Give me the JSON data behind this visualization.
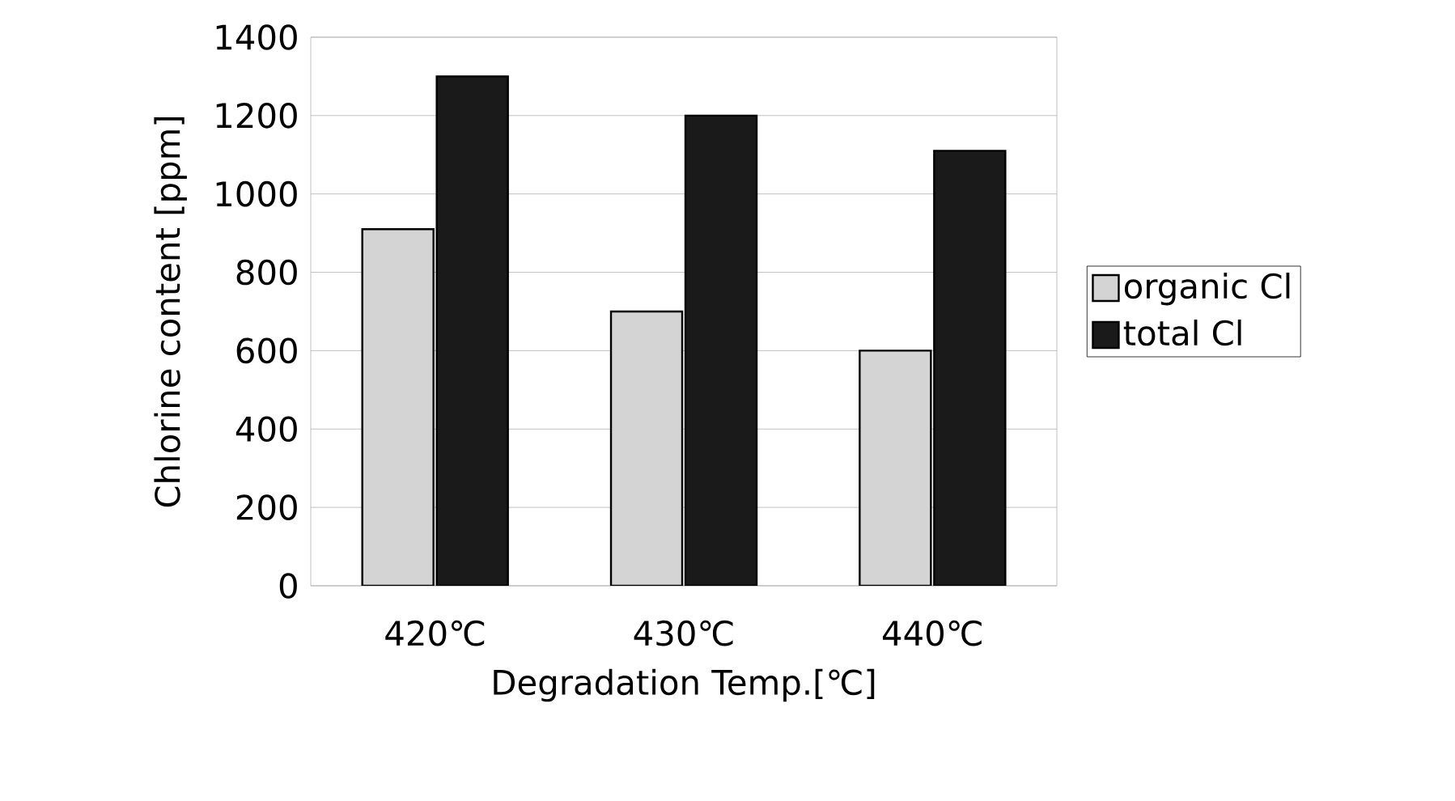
{
  "chart_data": {
    "type": "bar",
    "xlabel": "Degradation Temp.[℃]",
    "ylabel": "Chlorine content [ppm]",
    "categories": [
      "420℃",
      "430℃",
      "440℃"
    ],
    "series": [
      {
        "name": "organic Cl",
        "color": "#d4d4d4",
        "values": [
          910,
          700,
          600
        ]
      },
      {
        "name": "total Cl",
        "color": "#1a1a1a",
        "values": [
          1300,
          1200,
          1110
        ]
      }
    ],
    "ylim": [
      0,
      1400
    ],
    "yticks": [
      0,
      200,
      400,
      600,
      800,
      1000,
      1200,
      1400
    ],
    "grid": "y",
    "legend": "right"
  }
}
